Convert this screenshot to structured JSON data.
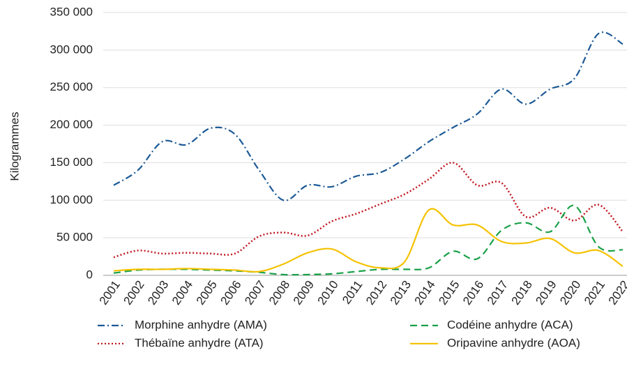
{
  "chart_data": {
    "type": "line",
    "y_label": "Kilogrammes",
    "categories": [
      "2001",
      "2002",
      "2003",
      "2004",
      "2005",
      "2006",
      "2007",
      "2008",
      "2009",
      "2010",
      "2011",
      "2012",
      "2013",
      "2014",
      "2015",
      "2016",
      "2017",
      "2018",
      "2019",
      "2020",
      "2021",
      "2022"
    ],
    "ylim": [
      0,
      350000
    ],
    "yticks": [
      0,
      {
        "value": 50000,
        "label": "50 000"
      },
      {
        "value": 100000,
        "label": "100 000"
      },
      {
        "value": 150000,
        "label": "150 000"
      },
      {
        "value": 200000,
        "label": "200 000"
      },
      {
        "value": 250000,
        "label": "250 000"
      },
      {
        "value": 300000,
        "label": "300 000"
      },
      {
        "value": 350000,
        "label": "350 000"
      }
    ],
    "grid": true,
    "legend": "bottom",
    "series": [
      {
        "name": "Morphine anhydre (AMA)",
        "color": "#1b5a96",
        "linestyle": "dashdot",
        "values": [
          120000,
          140000,
          178000,
          174000,
          196000,
          188000,
          140000,
          100000,
          120000,
          118000,
          132000,
          137000,
          155000,
          178000,
          197000,
          215000,
          248000,
          228000,
          248000,
          262000,
          322000,
          308000
        ]
      },
      {
        "name": "Thébaïne anhydre (ATA)",
        "color": "#c1161f",
        "linestyle": "dotted",
        "values": [
          24000,
          33000,
          29000,
          30000,
          29000,
          29000,
          52000,
          57000,
          53000,
          72000,
          82000,
          95000,
          108000,
          128000,
          150000,
          120000,
          123000,
          78000,
          90000,
          73000,
          94000,
          58000
        ]
      },
      {
        "name": "Codéine anhydre (ACA)",
        "color": "#18a047",
        "linestyle": "dashed",
        "values": [
          3000,
          7000,
          8000,
          8000,
          7000,
          6000,
          4000,
          1000,
          1000,
          2000,
          5000,
          8000,
          8000,
          10000,
          32000,
          22000,
          60000,
          70000,
          58000,
          93000,
          38000,
          34000
        ]
      },
      {
        "name": "Oripavine anhydre (AOA)",
        "color": "#f5c200",
        "linestyle": "solid",
        "values": [
          6000,
          8000,
          8000,
          9000,
          8000,
          7000,
          5000,
          15000,
          30000,
          35000,
          18000,
          10000,
          18000,
          87000,
          67000,
          67000,
          45000,
          43000,
          49000,
          30000,
          33000,
          12000
        ]
      }
    ]
  }
}
